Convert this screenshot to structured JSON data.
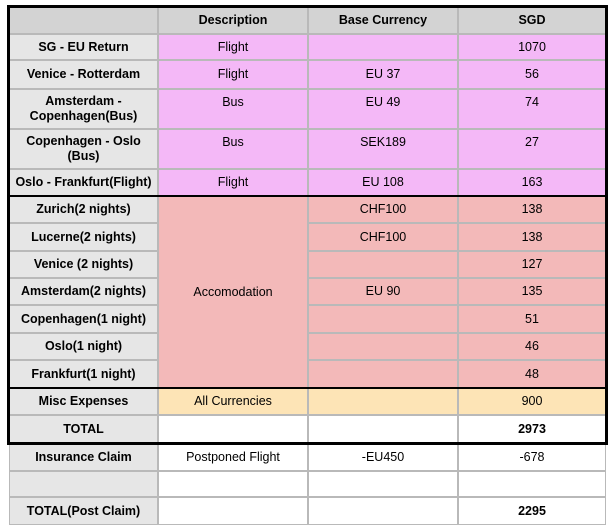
{
  "header": {
    "col0": "",
    "description": "Description",
    "base_currency": "Base Currency",
    "sgd": "SGD"
  },
  "transport": [
    {
      "route": "SG - EU Return",
      "description": "Flight",
      "base": "",
      "sgd": "1070"
    },
    {
      "route": "Venice - Rotterdam",
      "description": "Flight",
      "base": "EU 37",
      "sgd": "56"
    },
    {
      "route": "Amsterdam - Copenhagen(Bus)",
      "description": "Bus",
      "base": "EU 49",
      "sgd": "74"
    },
    {
      "route": "Copenhagen - Oslo (Bus)",
      "description": "Bus",
      "base": "SEK189",
      "sgd": "27"
    },
    {
      "route": "Oslo - Frankfurt(Flight)",
      "description": "Flight",
      "base": "EU 108",
      "sgd": "163"
    }
  ],
  "accommodation": {
    "description": "Accomodation",
    "rows": [
      {
        "place": "Zurich(2 nights)",
        "base": "CHF100",
        "sgd": "138"
      },
      {
        "place": "Lucerne(2 nights)",
        "base": "CHF100",
        "sgd": "138"
      },
      {
        "place": "Venice (2 nights)",
        "base": "",
        "sgd": "127"
      },
      {
        "place": "Amsterdam(2 nights)",
        "base": "EU 90",
        "sgd": "135"
      },
      {
        "place": "Copenhagen(1 night)",
        "base": "",
        "sgd": "51"
      },
      {
        "place": "Oslo(1 night)",
        "base": "",
        "sgd": "46"
      },
      {
        "place": "Frankfurt(1 night)",
        "base": "",
        "sgd": "48"
      }
    ]
  },
  "misc": {
    "label": "Misc Expenses",
    "description": "All Currencies",
    "base": "",
    "sgd": "900"
  },
  "total": {
    "label": "TOTAL",
    "description": "",
    "base": "",
    "sgd": "2973"
  },
  "insurance": {
    "label": "Insurance Claim",
    "description": "Postponed Flight",
    "base": "-EU450",
    "sgd": "-678"
  },
  "blank": {
    "label": "",
    "description": "",
    "base": "",
    "sgd": ""
  },
  "total_post": {
    "label": "TOTAL(Post Claim)",
    "description": "",
    "base": "",
    "sgd": "2295"
  },
  "colors": {
    "header": "#d3d3d3",
    "label": "#e6e6e6",
    "transport": "#f4b8f7",
    "accommodation": "#f3b9b9",
    "misc": "#fde4b6"
  }
}
